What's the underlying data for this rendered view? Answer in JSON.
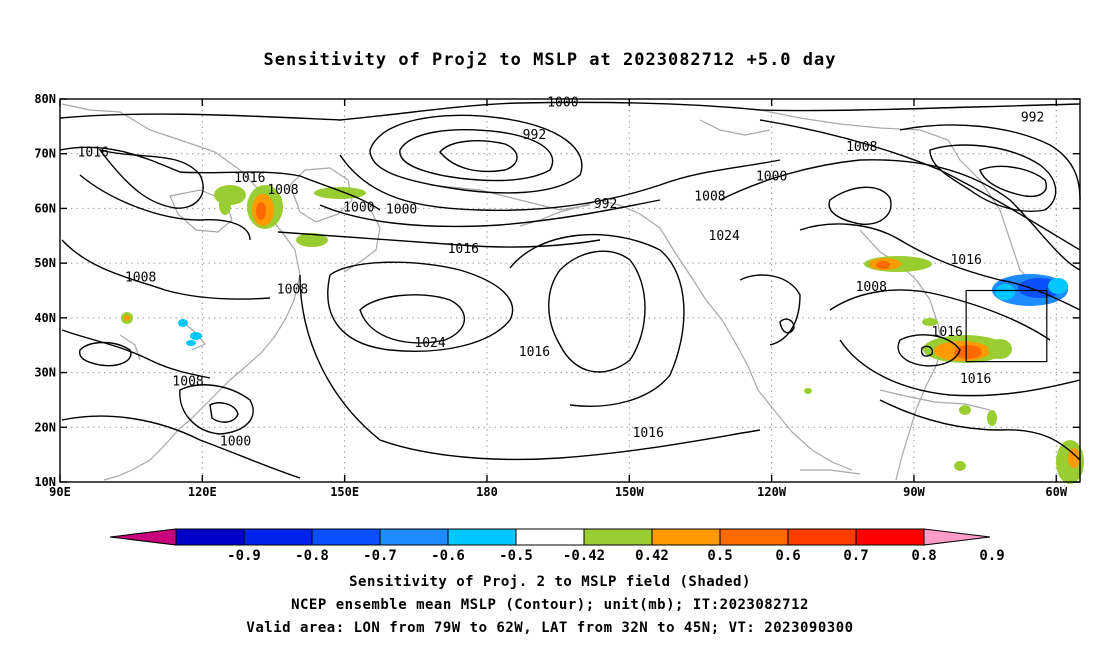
{
  "title": "Sensitivity of Proj2 to MSLP at 2023082712 +5.0 day",
  "lat_ticks": [
    "80N",
    "70N",
    "60N",
    "50N",
    "40N",
    "30N",
    "20N",
    "10N"
  ],
  "lon_ticks": [
    "90E",
    "120E",
    "150E",
    "180",
    "150W",
    "120W",
    "90W",
    "60W"
  ],
  "contour_labels": [
    {
      "text": "1000",
      "lon": 196,
      "lat": 79.4
    },
    {
      "text": "992",
      "lon": 190,
      "lat": 73.4
    },
    {
      "text": "1016",
      "lon": 97,
      "lat": 70.2
    },
    {
      "text": "1016",
      "lon": 130,
      "lat": 65.6
    },
    {
      "text": "1008",
      "lon": 137,
      "lat": 63.4
    },
    {
      "text": "1000",
      "lon": 153,
      "lat": 60.2
    },
    {
      "text": "1000",
      "lon": 162,
      "lat": 59.8
    },
    {
      "text": "992",
      "lon": 205,
      "lat": 60.8
    },
    {
      "text": "1008",
      "lon": 227,
      "lat": 62.2
    },
    {
      "text": "1000",
      "lon": 240,
      "lat": 65.8
    },
    {
      "text": "1008",
      "lon": 259,
      "lat": 71.2
    },
    {
      "text": "992",
      "lon": 295,
      "lat": 76.6
    },
    {
      "text": "1016",
      "lon": 175,
      "lat": 52.6
    },
    {
      "text": "1024",
      "lon": 230,
      "lat": 55.0
    },
    {
      "text": "1008",
      "lon": 107,
      "lat": 47.4
    },
    {
      "text": "1008",
      "lon": 139,
      "lat": 45.2
    },
    {
      "text": "1024",
      "lon": 168,
      "lat": 35.4
    },
    {
      "text": "1016",
      "lon": 190,
      "lat": 33.8
    },
    {
      "text": "1008",
      "lon": 117,
      "lat": 28.4
    },
    {
      "text": "1000",
      "lon": 127,
      "lat": 17.4
    },
    {
      "text": "1016",
      "lon": 214,
      "lat": 19.0
    },
    {
      "text": "1008",
      "lon": 261,
      "lat": 45.6
    },
    {
      "text": "1016",
      "lon": 281,
      "lat": 50.6
    },
    {
      "text": "1016",
      "lon": 277,
      "lat": 37.4
    },
    {
      "text": "1016",
      "lon": 283,
      "lat": 28.8
    }
  ],
  "valid_box": {
    "lon_min": 281,
    "lon_max": 298,
    "lat_min": 32,
    "lat_max": 45
  },
  "colorbar": {
    "colors": [
      "#c8007c",
      "#0000c8",
      "#0022ee",
      "#0a50ff",
      "#1e8cff",
      "#00c8ff",
      "#ffffff",
      "#9acd32",
      "#ff9a00",
      "#ff6a00",
      "#ff3c00",
      "#ff0000",
      "#ff9cc8"
    ],
    "labels": [
      "-0.9",
      "-0.8",
      "-0.7",
      "-0.6",
      "-0.5",
      "-0.42",
      "0.42",
      "0.5",
      "0.6",
      "0.7",
      "0.8",
      "0.9"
    ]
  },
  "caption": [
    "Sensitivity of Proj. 2 to MSLP field (Shaded)",
    "NCEP ensemble mean MSLP (Contour); unit(mb); IT:2023082712",
    "Valid area: LON from 79W to 62W, LAT from 32N to 45N; VT: 2023090300"
  ]
}
